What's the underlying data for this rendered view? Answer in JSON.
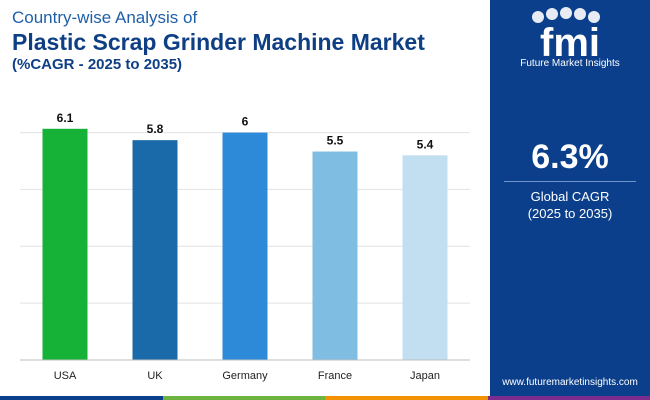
{
  "header": {
    "subtitle": "Country-wise Analysis of",
    "title": "Plastic Scrap Grinder Machine Market",
    "range": "(%CAGR - 2025 to 2035)"
  },
  "chart_data": {
    "type": "bar",
    "categories": [
      "USA",
      "UK",
      "Germany",
      "France",
      "Japan"
    ],
    "values": [
      6.1,
      5.8,
      6,
      5.5,
      5.4
    ],
    "value_labels": [
      "6.1",
      "5.8",
      "6",
      "5.5",
      "5.4"
    ],
    "colors": [
      "#16b237",
      "#1a6aa9",
      "#2c8ad8",
      "#80bde2",
      "#c1dff1"
    ],
    "ylim": [
      0,
      6.2
    ],
    "grid": true,
    "title": "",
    "xlabel": "",
    "ylabel": ""
  },
  "panel": {
    "logo_letters": "fmi",
    "logo_text": "Future Market Insights",
    "cagr_value": "6.3%",
    "cagr_label": "Global CAGR",
    "cagr_range": "(2025 to 2035)",
    "website": "www.futuremarketinsights.com",
    "background": "#0b3f8c"
  },
  "bottom_strip_colors": [
    "#0b3f8c",
    "#6cb33f",
    "#f39200",
    "#7b2d8e"
  ]
}
